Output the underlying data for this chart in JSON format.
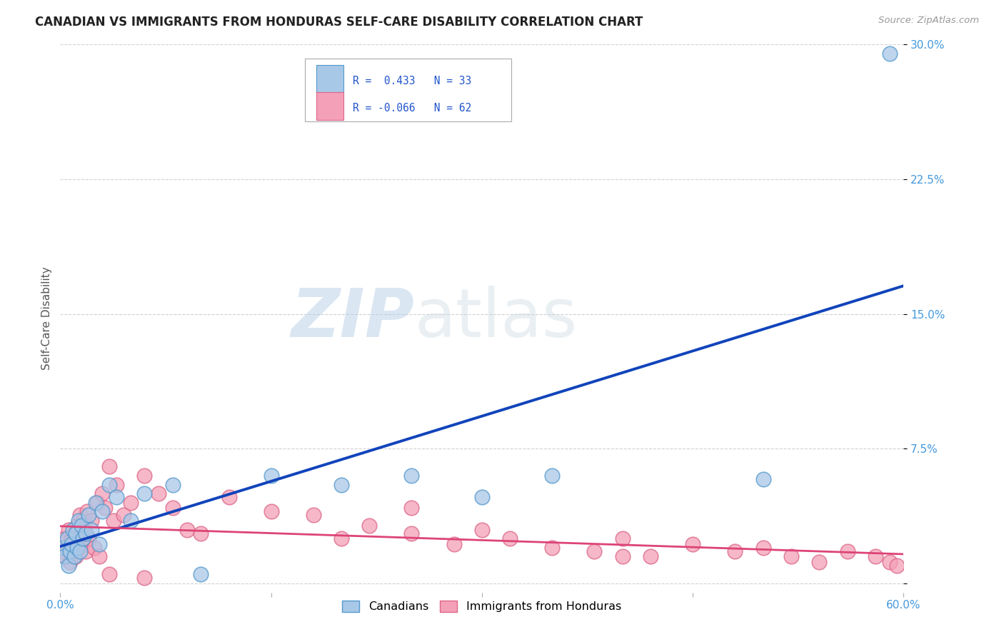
{
  "title": "CANADIAN VS IMMIGRANTS FROM HONDURAS SELF-CARE DISABILITY CORRELATION CHART",
  "source": "Source: ZipAtlas.com",
  "ylabel": "Self-Care Disability",
  "xlim": [
    0,
    0.6
  ],
  "ylim": [
    -0.005,
    0.3
  ],
  "yticks": [
    0.0,
    0.075,
    0.15,
    0.225,
    0.3
  ],
  "ytick_labels": [
    "",
    "7.5%",
    "15.0%",
    "22.5%",
    "30.0%"
  ],
  "xticks": [
    0.0,
    0.15,
    0.3,
    0.45,
    0.6
  ],
  "xtick_labels": [
    "0.0%",
    "",
    "",
    "",
    "60.0%"
  ],
  "canadian_color": "#a8c8e8",
  "canadian_edge_color": "#5599cc",
  "canadian_line_color": "#1144bb",
  "honduran_color": "#f4a0b8",
  "honduran_edge_color": "#dd6688",
  "honduran_line_color": "#dd4477",
  "R_canadian": 0.433,
  "N_canadian": 33,
  "R_honduran": -0.066,
  "N_honduran": 62,
  "background_color": "#ffffff",
  "grid_color": "#cccccc",
  "watermark_zip": "ZIP",
  "watermark_atlas": "atlas",
  "tick_label_color": "#4499dd",
  "canadians_x": [
    0.002,
    0.003,
    0.005,
    0.006,
    0.007,
    0.008,
    0.009,
    0.01,
    0.011,
    0.012,
    0.013,
    0.014,
    0.015,
    0.016,
    0.018,
    0.02,
    0.022,
    0.025,
    0.028,
    0.03,
    0.035,
    0.04,
    0.05,
    0.06,
    0.08,
    0.1,
    0.15,
    0.2,
    0.25,
    0.3,
    0.35,
    0.5,
    0.59
  ],
  "canadians_y": [
    0.02,
    0.015,
    0.025,
    0.01,
    0.018,
    0.022,
    0.03,
    0.015,
    0.028,
    0.02,
    0.035,
    0.018,
    0.032,
    0.025,
    0.028,
    0.038,
    0.03,
    0.045,
    0.022,
    0.04,
    0.055,
    0.048,
    0.035,
    0.05,
    0.055,
    0.005,
    0.06,
    0.055,
    0.06,
    0.048,
    0.06,
    0.058,
    0.295
  ],
  "hondurans_x": [
    0.001,
    0.002,
    0.003,
    0.004,
    0.005,
    0.006,
    0.007,
    0.008,
    0.009,
    0.01,
    0.011,
    0.012,
    0.013,
    0.014,
    0.015,
    0.016,
    0.017,
    0.018,
    0.019,
    0.02,
    0.022,
    0.024,
    0.026,
    0.028,
    0.03,
    0.032,
    0.035,
    0.038,
    0.04,
    0.045,
    0.05,
    0.06,
    0.07,
    0.08,
    0.09,
    0.1,
    0.12,
    0.15,
    0.18,
    0.2,
    0.22,
    0.25,
    0.28,
    0.3,
    0.32,
    0.35,
    0.38,
    0.4,
    0.42,
    0.45,
    0.48,
    0.5,
    0.52,
    0.54,
    0.56,
    0.58,
    0.59,
    0.595,
    0.25,
    0.4,
    0.035,
    0.06
  ],
  "hondurans_y": [
    0.022,
    0.018,
    0.025,
    0.015,
    0.02,
    0.03,
    0.012,
    0.025,
    0.018,
    0.028,
    0.015,
    0.032,
    0.02,
    0.038,
    0.022,
    0.035,
    0.028,
    0.018,
    0.04,
    0.025,
    0.035,
    0.02,
    0.045,
    0.015,
    0.05,
    0.042,
    0.065,
    0.035,
    0.055,
    0.038,
    0.045,
    0.06,
    0.05,
    0.042,
    0.03,
    0.028,
    0.048,
    0.04,
    0.038,
    0.025,
    0.032,
    0.042,
    0.022,
    0.03,
    0.025,
    0.02,
    0.018,
    0.025,
    0.015,
    0.022,
    0.018,
    0.02,
    0.015,
    0.012,
    0.018,
    0.015,
    0.012,
    0.01,
    0.028,
    0.015,
    0.005,
    0.003
  ]
}
